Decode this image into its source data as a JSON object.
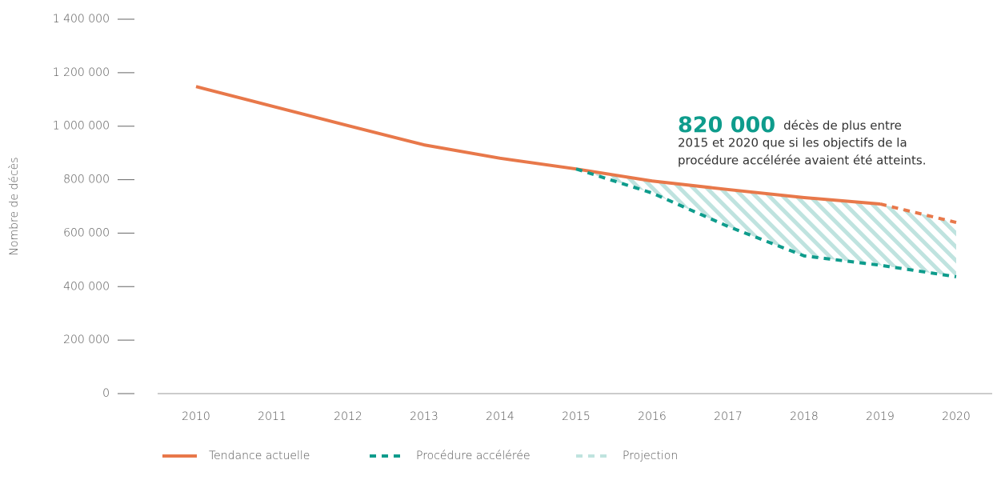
{
  "chart_data": {
    "type": "line",
    "y_label": "Nombre de décès",
    "categories": [
      "2010",
      "2011",
      "2012",
      "2013",
      "2014",
      "2015",
      "2016",
      "2017",
      "2018",
      "2019",
      "2020"
    ],
    "series": [
      {
        "name": "Tendance actuelle",
        "color": "#e8784a",
        "dashed_from": "2019",
        "values": [
          1148000,
          1075000,
          1002000,
          930000,
          880000,
          840000,
          795000,
          763000,
          733000,
          709000,
          640000
        ]
      },
      {
        "name": "Procédure accélérée",
        "color": "#0e9c8c",
        "dashed": true,
        "values": [
          null,
          null,
          null,
          null,
          null,
          840000,
          750000,
          625000,
          515000,
          480000,
          437000
        ]
      }
    ],
    "area": {
      "name": "Projection",
      "color": "#bfe3df",
      "from": "2015"
    },
    "annotation": {
      "highlight": "820 000",
      "lines": [
        "décès de plus entre",
        "2015 et 2020 que si les objectifs de la",
        "procédure accélérée avaient été atteints."
      ]
    },
    "ylim": [
      0,
      1400000
    ],
    "yticks": [
      0,
      {
        "value": 200000,
        "label": "200 000"
      },
      {
        "value": 400000,
        "label": "400 000"
      },
      {
        "value": 600000,
        "label": "600 000"
      },
      {
        "value": 800000,
        "label": "800 000"
      },
      {
        "value": 1000000,
        "label": "1 000 000"
      },
      {
        "value": 1200000,
        "label": "1 200 000"
      },
      {
        "value": 1400000,
        "label": "1 400 000"
      }
    ]
  }
}
